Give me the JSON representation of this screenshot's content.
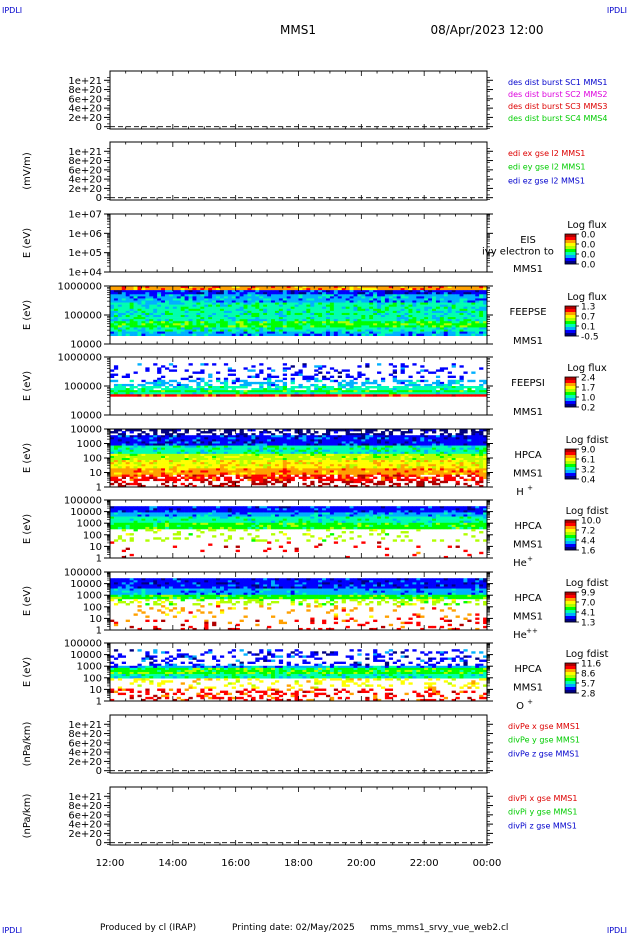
{
  "header": {
    "corner_left": "IPDLI",
    "corner_right": "IPDLI",
    "mission": "MMS1",
    "datetime": "08/Apr/2023 12:00"
  },
  "footer": {
    "produced_by": "Produced by cl (IRAP)",
    "printing_date": "Printing date: 02/May/2025",
    "script_name": "mms_mms1_srvy_vue_web2.cl",
    "corner_left": "IPDLI",
    "corner_right": "IPDLI"
  },
  "x_ticks": [
    "12:00",
    "14:00",
    "16:00",
    "18:00",
    "20:00",
    "22:00",
    "00:00"
  ],
  "colors": {
    "red": "#dd0000",
    "green": "#00cc00",
    "blue": "#0000cc",
    "magenta": "#dd00dd",
    "colormap": [
      "#000080",
      "#0000ff",
      "#00b0ff",
      "#00ffb0",
      "#00ff00",
      "#b0ff00",
      "#ffff00",
      "#ffa000",
      "#ff0000",
      "#b00000"
    ]
  },
  "chart_data": [
    {
      "type": "line",
      "id": "dist",
      "ylabel": "",
      "ylim": [
        -5e+19,
        1.2e+21
      ],
      "y_ticks": [
        "1e+21",
        "8e+20",
        "6e+20",
        "4e+20",
        "2e+20",
        "0"
      ],
      "legend": [
        {
          "text": "des dist burst SC1 MMS1",
          "color": "blue"
        },
        {
          "text": "des dist burst SC2 MMS2",
          "color": "magenta"
        },
        {
          "text": "des dist burst SC3 MMS3",
          "color": "red"
        },
        {
          "text": "des dist burst SC4 MMS4",
          "color": "green"
        }
      ]
    },
    {
      "type": "line",
      "id": "edi",
      "ylabel": "(mV/m)",
      "ylim": [
        -5e+19,
        1.2e+21
      ],
      "y_ticks": [
        "1e+21",
        "8e+20",
        "6e+20",
        "4e+20",
        "2e+20",
        "0"
      ],
      "legend": [
        {
          "text": "edi ex gse l2 MMS1",
          "color": "red"
        },
        {
          "text": "edi ey gse l2 MMS1",
          "color": "green"
        },
        {
          "text": "edi ez gse l2 MMS1",
          "color": "blue"
        }
      ]
    },
    {
      "type": "heatmap",
      "id": "eis",
      "ylabel": "E (eV)",
      "y_ticks": [
        "1e+07",
        "1e+06",
        "1e+05",
        "1e+04"
      ],
      "instrument": "EIS",
      "spacecraft": "MMS1",
      "overlay_text": "ivy electron to",
      "colorbar_title": "Log flux",
      "colorbar_ticks": [
        "0.0",
        "0.0",
        "0.0",
        "0.0"
      ],
      "empty": true
    },
    {
      "type": "heatmap",
      "id": "feepse",
      "ylabel": "E (eV)",
      "y_ticks": [
        "1000000",
        "100000",
        "10000"
      ],
      "instrument": "FEEPSE",
      "spacecraft": "MMS1",
      "colorbar_title": "Log flux",
      "colorbar_ticks": [
        "1.3",
        "0.7",
        "0.1",
        "-0.5"
      ],
      "bands": [
        {
          "from": 0.0,
          "to": 0.07,
          "level": 7
        },
        {
          "from": 0.07,
          "to": 0.16,
          "level": 1
        },
        {
          "from": 0.16,
          "to": 0.3,
          "level": 2
        },
        {
          "from": 0.3,
          "to": 0.62,
          "level": 3
        },
        {
          "from": 0.62,
          "to": 0.72,
          "level": 4
        },
        {
          "from": 0.72,
          "to": 0.8,
          "level": 3
        },
        {
          "from": 0.8,
          "to": 0.84,
          "level": 2
        }
      ],
      "noise": 0.35
    },
    {
      "type": "heatmap",
      "id": "feepsi",
      "ylabel": "E (eV)",
      "y_ticks": [
        "1000000",
        "100000",
        "10000"
      ],
      "instrument": "FEEPSI",
      "spacecraft": "MMS1",
      "colorbar_title": "Log flux",
      "colorbar_ticks": [
        "2.4",
        "1.7",
        "1.0",
        "0.2"
      ],
      "bands": [
        {
          "from": 0.12,
          "to": 0.4,
          "level": 1,
          "sparse": 0.22
        },
        {
          "from": 0.4,
          "to": 0.5,
          "level": 2,
          "sparse": 0.5
        },
        {
          "from": 0.5,
          "to": 0.56,
          "level": 3,
          "sparse": 0.8
        },
        {
          "from": 0.56,
          "to": 0.62,
          "level": 4
        },
        {
          "from": 0.62,
          "to": 0.66,
          "level": 3
        },
        {
          "from": 0.66,
          "to": 0.69,
          "level": 8
        }
      ],
      "noise": 0.2
    },
    {
      "type": "heatmap",
      "id": "hpca-h",
      "ylabel": "E (eV)",
      "y_ticks": [
        "10000",
        "1000",
        "100",
        "10",
        "1"
      ],
      "instrument": "HPCA",
      "spacecraft": "MMS1",
      "species": "H",
      "charge": "+",
      "colorbar_title": "Log fdist",
      "colorbar_ticks": [
        "9.0",
        "6.1",
        "3.2",
        "0.4"
      ],
      "bands": [
        {
          "from": 0.0,
          "to": 0.1,
          "level": 0,
          "sparse": 0.5
        },
        {
          "from": 0.1,
          "to": 0.28,
          "level": 1
        },
        {
          "from": 0.28,
          "to": 0.42,
          "level": 3
        },
        {
          "from": 0.42,
          "to": 0.55,
          "level": 5
        },
        {
          "from": 0.55,
          "to": 0.68,
          "level": 6
        },
        {
          "from": 0.68,
          "to": 0.8,
          "level": 7
        },
        {
          "from": 0.8,
          "to": 0.9,
          "level": 8,
          "sparse": 0.7
        },
        {
          "from": 0.9,
          "to": 1.0,
          "level": 9,
          "sparse": 0.4
        }
      ],
      "noise": 0.3
    },
    {
      "type": "heatmap",
      "id": "hpca-he",
      "ylabel": "E (eV)",
      "y_ticks": [
        "100000",
        "10000",
        "1000",
        "100",
        "10",
        "1"
      ],
      "instrument": "HPCA",
      "spacecraft": "MMS1",
      "species": "He",
      "charge": "+",
      "colorbar_title": "Log fdist",
      "colorbar_ticks": [
        "10.0",
        "7.2",
        "4.4",
        "1.6"
      ],
      "bands": [
        {
          "from": 0.12,
          "to": 0.22,
          "level": 1
        },
        {
          "from": 0.22,
          "to": 0.3,
          "level": 2
        },
        {
          "from": 0.3,
          "to": 0.4,
          "level": 3
        },
        {
          "from": 0.4,
          "to": 0.5,
          "level": 4
        },
        {
          "from": 0.5,
          "to": 0.7,
          "level": 5,
          "sparse": 0.15
        },
        {
          "from": 0.7,
          "to": 1.0,
          "level": 8,
          "sparse": 0.05
        }
      ],
      "noise": 0.2
    },
    {
      "type": "heatmap",
      "id": "hpca-hepp",
      "ylabel": "E (eV)",
      "y_ticks": [
        "100000",
        "10000",
        "1000",
        "100",
        "10",
        "1"
      ],
      "instrument": "HPCA",
      "spacecraft": "MMS1",
      "species": "He",
      "charge": "++",
      "colorbar_title": "Log fdist",
      "colorbar_ticks": [
        "9.9",
        "7.0",
        "4.1",
        "1.3"
      ],
      "bands": [
        {
          "from": 0.12,
          "to": 0.3,
          "level": 1
        },
        {
          "from": 0.3,
          "to": 0.38,
          "level": 2
        },
        {
          "from": 0.38,
          "to": 0.46,
          "level": 4
        },
        {
          "from": 0.46,
          "to": 0.58,
          "level": 5,
          "sparse": 0.35
        },
        {
          "from": 0.58,
          "to": 0.8,
          "level": 7,
          "sparse": 0.12
        },
        {
          "from": 0.8,
          "to": 1.0,
          "level": 8,
          "sparse": 0.15
        }
      ],
      "noise": 0.25
    },
    {
      "type": "heatmap",
      "id": "hpca-o",
      "ylabel": "E (eV)",
      "y_ticks": [
        "100000",
        "10000",
        "1000",
        "100",
        "10",
        "1"
      ],
      "instrument": "HPCA",
      "spacecraft": "MMS1",
      "species": "O",
      "charge": "+",
      "colorbar_title": "Log fdist",
      "colorbar_ticks": [
        "11.6",
        "8.6",
        "5.7",
        "2.8"
      ],
      "bands": [
        {
          "from": 0.1,
          "to": 0.38,
          "level": 1,
          "sparse": 0.3
        },
        {
          "from": 0.38,
          "to": 0.44,
          "level": 2
        },
        {
          "from": 0.44,
          "to": 0.52,
          "level": 4
        },
        {
          "from": 0.52,
          "to": 0.62,
          "level": 3
        },
        {
          "from": 0.62,
          "to": 0.8,
          "level": 6,
          "sparse": 0.25
        },
        {
          "from": 0.8,
          "to": 1.0,
          "level": 8,
          "sparse": 0.35
        }
      ],
      "noise": 0.3
    },
    {
      "type": "line",
      "id": "divpe",
      "ylabel": "(nPa/km)",
      "ylim": [
        -5e+19,
        1.2e+21
      ],
      "y_ticks": [
        "1e+21",
        "8e+20",
        "6e+20",
        "4e+20",
        "2e+20",
        "0"
      ],
      "legend": [
        {
          "text": "divPe x gse MMS1",
          "color": "red"
        },
        {
          "text": "divPe y gse MMS1",
          "color": "green"
        },
        {
          "text": "divPe z gse MMS1",
          "color": "blue"
        }
      ]
    },
    {
      "type": "line",
      "id": "divpi",
      "ylabel": "(nPa/km)",
      "ylim": [
        -5e+19,
        1.2e+21
      ],
      "y_ticks": [
        "1e+21",
        "8e+20",
        "6e+20",
        "4e+20",
        "2e+20",
        "0"
      ],
      "legend": [
        {
          "text": "divPi x gse MMS1",
          "color": "red"
        },
        {
          "text": "divPi y gse MMS1",
          "color": "green"
        },
        {
          "text": "divPi z gse MMS1",
          "color": "blue"
        }
      ]
    }
  ]
}
